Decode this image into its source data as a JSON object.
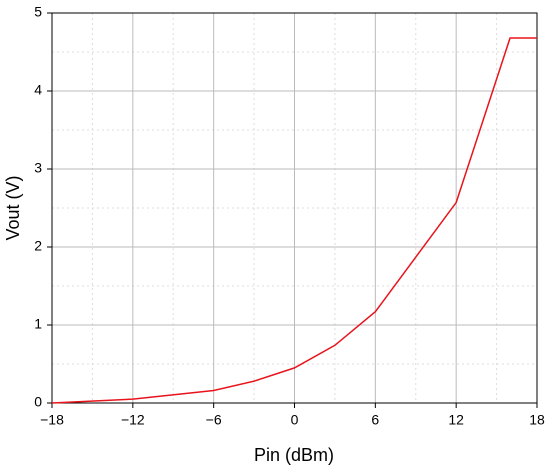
{
  "chart_data": {
    "type": "line",
    "x_label": "Pin (dBm)",
    "y_label": "Vout (V)",
    "x": [
      -18,
      -12,
      -6,
      -3,
      0,
      3,
      6,
      12,
      16,
      18
    ],
    "series": [
      {
        "color": "#e8141c",
        "values": [
          0.0,
          0.05,
          0.16,
          0.28,
          0.45,
          0.74,
          1.17,
          2.57,
          4.68,
          4.68
        ]
      }
    ],
    "xlim": [
      -18,
      18
    ],
    "xticks": [
      {
        "value": -18,
        "label": "−18"
      },
      {
        "value": -12,
        "label": "−12"
      },
      {
        "value": -6,
        "label": "−6"
      },
      0,
      6,
      12,
      18
    ],
    "x_minor_ticks": [
      -15,
      -9,
      -3,
      3,
      9,
      15
    ],
    "ylim": [
      0,
      5
    ],
    "yticks": [
      0,
      1,
      2,
      3,
      4,
      5
    ],
    "y_minor_ticks": [
      0.5,
      1.5,
      2.5,
      3.5,
      4.5
    ],
    "grid": true
  }
}
